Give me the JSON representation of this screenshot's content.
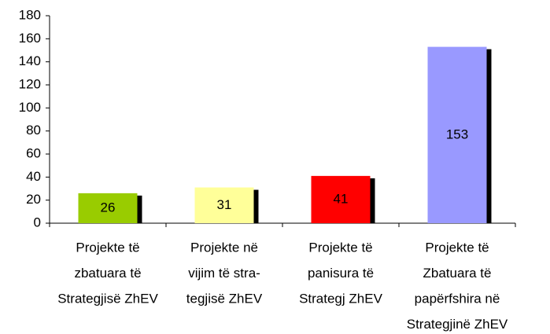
{
  "chart_data": {
    "type": "bar",
    "categories": [
      [
        "Projekte të",
        "zbatuara të",
        "Strategjisë ZhEV"
      ],
      [
        "Projekte në",
        "vijim të stra-",
        "tegjisë ZhEV"
      ],
      [
        "Projekte të",
        "panisura të",
        "Strategj ZhEV"
      ],
      [
        "Projekte të",
        "Zbatuara të",
        "papërfshira në",
        "Strategjinë ZhEV"
      ]
    ],
    "values": [
      26,
      31,
      41,
      153
    ],
    "colors": [
      "#99cc00",
      "#ffff99",
      "#ff0000",
      "#9999ff"
    ],
    "shadow_color": "#000000",
    "ylim": [
      0,
      180
    ],
    "yticks": [
      0,
      20,
      40,
      60,
      80,
      100,
      120,
      140,
      160,
      180
    ],
    "grid": false
  }
}
